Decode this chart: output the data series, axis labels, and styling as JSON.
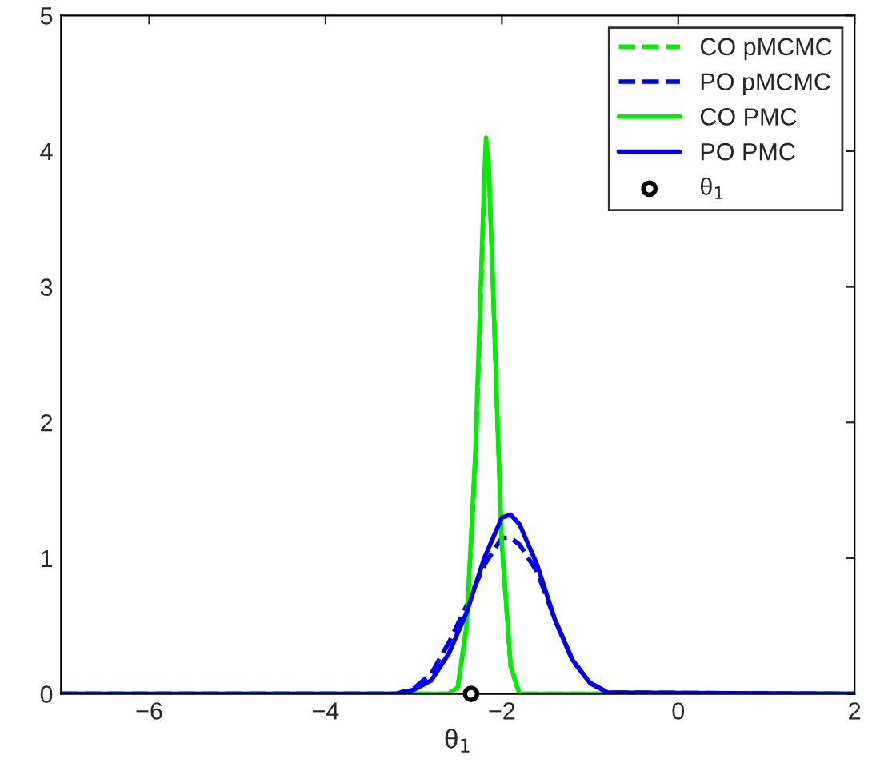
{
  "chart_data": {
    "type": "line",
    "xlabel": "θ$_{1}$",
    "xlim": [
      -7,
      2
    ],
    "xticks": [
      -6,
      -4,
      -2,
      0,
      2
    ],
    "ylim": [
      0,
      5
    ],
    "yticks": [
      0,
      1,
      2,
      3,
      4,
      5
    ],
    "grid": false,
    "legend": "top right",
    "series": [
      {
        "name": "CO pMCMC",
        "color": "#00ee00",
        "line_style": "dashed",
        "x": [
          -7,
          -2.6,
          -2.5,
          -2.4,
          -2.3,
          -2.25,
          -2.2,
          -2.18,
          -2.15,
          -2.1,
          -2.05,
          -2.0,
          -1.9,
          -1.8,
          2
        ],
        "values": [
          0,
          0,
          0.05,
          0.5,
          1.7,
          2.7,
          3.7,
          4.0,
          3.9,
          3.0,
          2.0,
          1.1,
          0.2,
          0,
          0
        ]
      },
      {
        "name": "PO pMCMC",
        "color": "#0000ee",
        "line_style": "dashed",
        "x": [
          -7,
          -3.2,
          -3.0,
          -2.8,
          -2.6,
          -2.4,
          -2.2,
          -2.0,
          -1.9,
          -1.8,
          -1.6,
          -1.4,
          -1.2,
          -1.0,
          -0.8,
          2
        ],
        "values": [
          0,
          0,
          0.04,
          0.15,
          0.38,
          0.65,
          0.95,
          1.15,
          1.15,
          1.1,
          0.9,
          0.55,
          0.25,
          0.08,
          0.01,
          0
        ]
      },
      {
        "name": "CO PMC",
        "color": "#00ee00",
        "line_style": "solid",
        "x": [
          -7,
          -2.6,
          -2.5,
          -2.4,
          -2.3,
          -2.25,
          -2.2,
          -2.18,
          -2.15,
          -2.1,
          -2.05,
          -2.0,
          -1.9,
          -1.8,
          2
        ],
        "values": [
          0,
          0,
          0.05,
          0.5,
          1.8,
          2.8,
          3.8,
          4.1,
          3.9,
          3.0,
          2.0,
          1.1,
          0.2,
          0,
          0
        ]
      },
      {
        "name": "PO PMC",
        "color": "#0000ee",
        "line_style": "solid",
        "x": [
          -7,
          -3.2,
          -3.0,
          -2.8,
          -2.6,
          -2.4,
          -2.2,
          -2.0,
          -1.9,
          -1.8,
          -1.6,
          -1.4,
          -1.2,
          -1.0,
          -0.8,
          2
        ],
        "values": [
          0,
          0,
          0.03,
          0.1,
          0.3,
          0.6,
          1.0,
          1.3,
          1.32,
          1.25,
          0.95,
          0.55,
          0.25,
          0.08,
          0.01,
          0
        ]
      },
      {
        "name": "θ$_{1}$",
        "type": "scatter",
        "color": "#000000",
        "marker": "circle",
        "x": [
          -2.35
        ],
        "values": [
          0
        ]
      }
    ]
  }
}
